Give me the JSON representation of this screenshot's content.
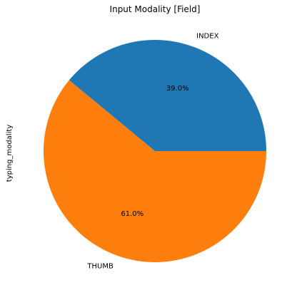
{
  "chart_data": {
    "type": "pie",
    "title": "Input Modality [Field]",
    "ylabel": "typing_modality",
    "categories": [
      "INDEX",
      "THUMB"
    ],
    "values": [
      39.0,
      61.0
    ],
    "pct_labels": [
      "39.0%",
      "61.0%"
    ],
    "colors": [
      "#1f77b4",
      "#ff7f0e"
    ],
    "start_angle_deg": 0,
    "direction": "counterclockwise"
  }
}
